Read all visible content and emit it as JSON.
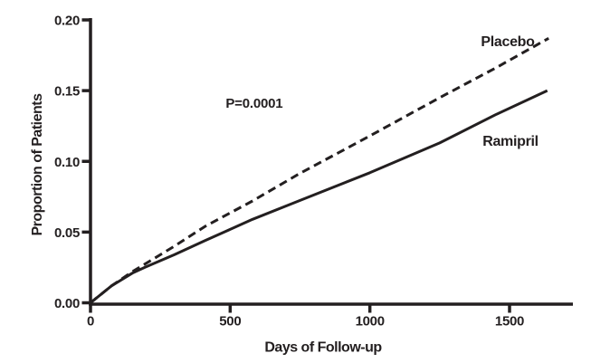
{
  "figure": {
    "background": "#ffffff",
    "ink_color": "#231f20"
  },
  "chart_data": {
    "type": "line",
    "title": "",
    "xlabel": "Days of Follow-up",
    "ylabel": "Proportion of Patients",
    "xlim": [
      0,
      1725
    ],
    "ylim": [
      0,
      0.2
    ],
    "grid": false,
    "legend_position": "inline-labels-near-lines",
    "xticks": {
      "values": [
        0,
        500,
        1000,
        1500
      ],
      "labels": [
        "0",
        "500",
        "1000",
        "1500"
      ]
    },
    "yticks": {
      "values": [
        0,
        0.05,
        0.1,
        0.15,
        0.2
      ],
      "labels": [
        "0.00",
        "0.05",
        "0.10",
        "0.15",
        "0.20"
      ]
    },
    "annotations": [
      {
        "text": "P=0.0001",
        "x": 586,
        "y": 0.138
      }
    ],
    "series": [
      {
        "name": "Placebo",
        "line_style": "dashed",
        "x": [
          0,
          75,
          150,
          300,
          410,
          580,
          745,
          1000,
          1250,
          1450,
          1640
        ],
        "y": [
          0,
          0.012,
          0.022,
          0.04,
          0.054,
          0.072,
          0.091,
          0.118,
          0.145,
          0.166,
          0.187
        ]
      },
      {
        "name": "Ramipril",
        "line_style": "solid",
        "x": [
          0,
          75,
          150,
          194,
          300,
          410,
          580,
          745,
          1000,
          1250,
          1450,
          1635
        ],
        "y": [
          0,
          0.012,
          0.021,
          0.025,
          0.034,
          0.044,
          0.059,
          0.072,
          0.092,
          0.113,
          0.133,
          0.15
        ]
      }
    ]
  }
}
